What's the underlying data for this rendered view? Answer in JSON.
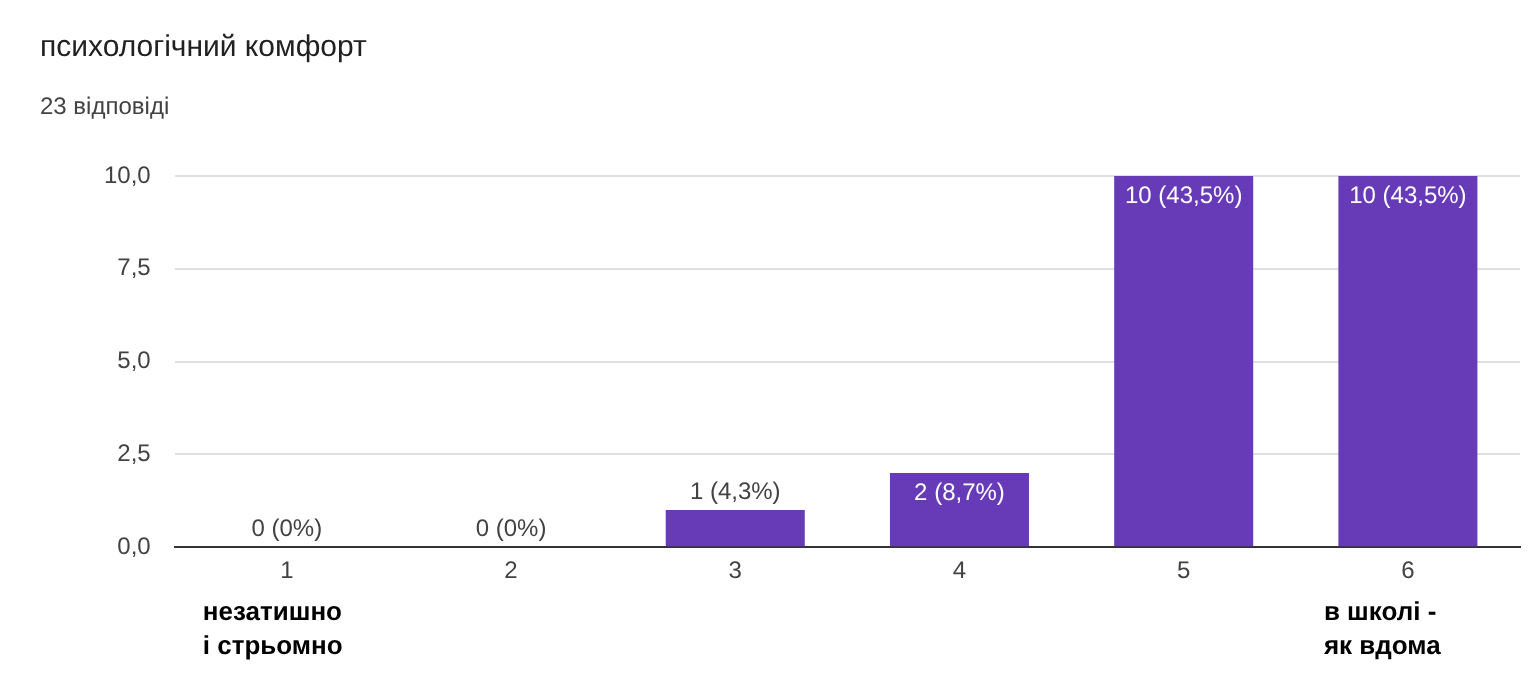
{
  "chart_data": {
    "type": "bar",
    "title": "психологічний комфорт",
    "subtitle": "23 відповіді",
    "categories": [
      "1",
      "2",
      "3",
      "4",
      "5",
      "6"
    ],
    "values": [
      0,
      0,
      1,
      2,
      10,
      10
    ],
    "value_labels": [
      "0 (0%)",
      "0 (0%)",
      "1 (4,3%)",
      "2 (8,7%)",
      "10 (43,5%)",
      "10 (43,5%)"
    ],
    "color": "#673ab7",
    "ylim": [
      0,
      10
    ],
    "yticks": [
      {
        "value": 0,
        "label": "0,0"
      },
      {
        "value": 2.5,
        "label": "2,5"
      },
      {
        "value": 5,
        "label": "5,0"
      },
      {
        "value": 7.5,
        "label": "7,5"
      },
      {
        "value": 10,
        "label": "10,0"
      }
    ],
    "grid": "y",
    "legend": false,
    "annotations": [
      "незатишно і стрьомно",
      "в школі - як вдома"
    ]
  }
}
